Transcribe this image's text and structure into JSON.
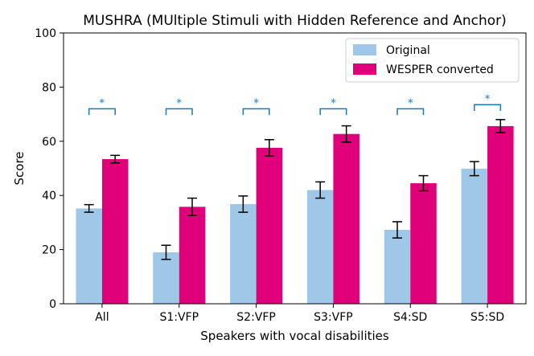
{
  "chart_data": {
    "type": "bar",
    "title": "MUSHRA (MUltiple Stimuli with Hidden Reference and Anchor)",
    "xlabel": "Speakers with vocal disabilities",
    "ylabel": "Score",
    "ylim": [
      0,
      100
    ],
    "yticks": [
      0,
      20,
      40,
      60,
      80,
      100
    ],
    "categories": [
      "All",
      "S1:VFP",
      "S2:VFP",
      "S3:VFP",
      "S4:SD",
      "S5:SD"
    ],
    "series": [
      {
        "name": "Original",
        "color": "#9fc8e8",
        "values": [
          35.2,
          19.0,
          36.8,
          42.0,
          27.3,
          49.9
        ],
        "errors": [
          1.4,
          2.6,
          3.0,
          3.0,
          3.0,
          2.6
        ]
      },
      {
        "name": "WESPER converted",
        "color": "#e0007a",
        "values": [
          53.4,
          35.8,
          57.6,
          62.7,
          44.5,
          65.6
        ],
        "errors": [
          1.4,
          3.2,
          3.0,
          3.0,
          2.8,
          2.4
        ]
      }
    ],
    "significance": {
      "label": "*",
      "color": "#1f77b4",
      "levels": [
        72,
        72,
        72,
        72,
        72,
        73.5
      ]
    },
    "legend": {
      "position": "top-right"
    }
  }
}
